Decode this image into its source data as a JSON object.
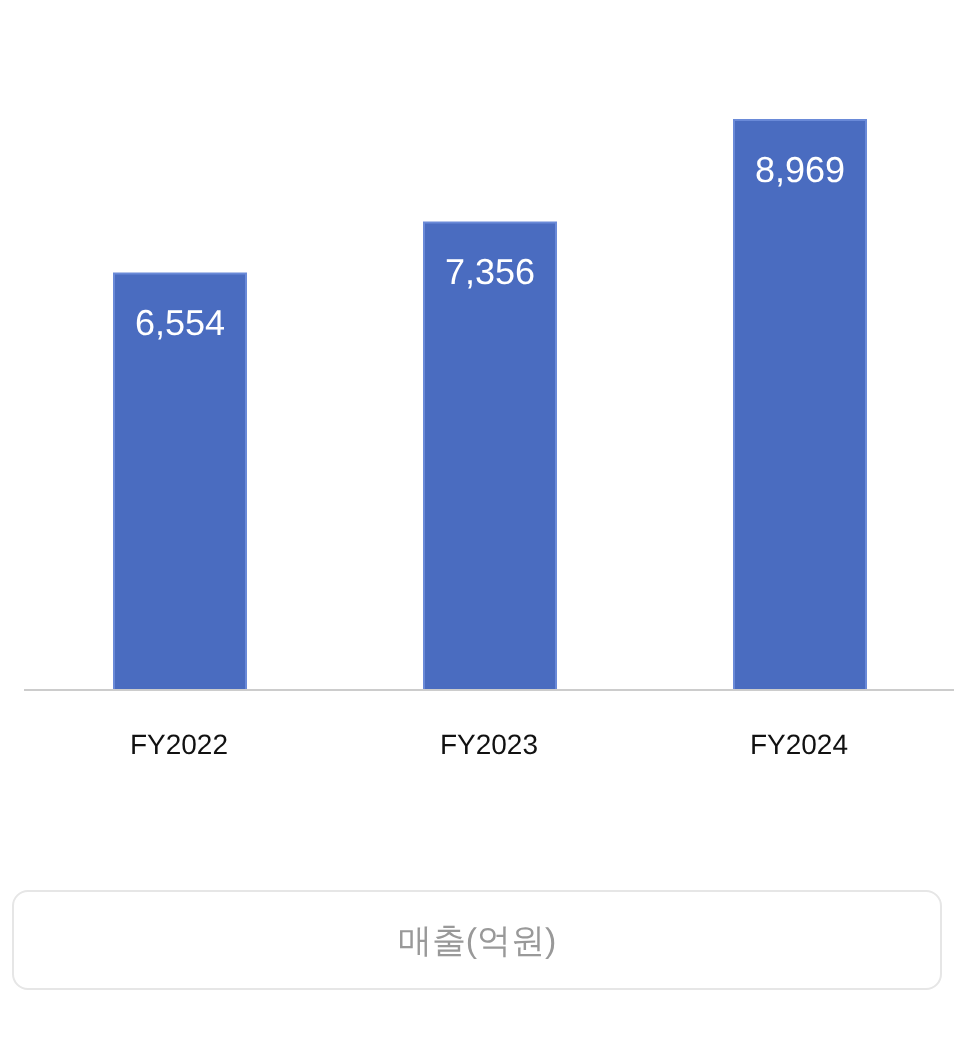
{
  "chart_data": {
    "type": "bar",
    "categories": [
      "FY2022",
      "FY2023",
      "FY2024"
    ],
    "series": [
      {
        "color": "#4a6cc0",
        "values": [
          6554,
          7356,
          8969
        ],
        "value_labels": [
          "6,554",
          "7,356",
          "8,969"
        ]
      }
    ],
    "annotations": [
      "매출(억원)"
    ]
  }
}
